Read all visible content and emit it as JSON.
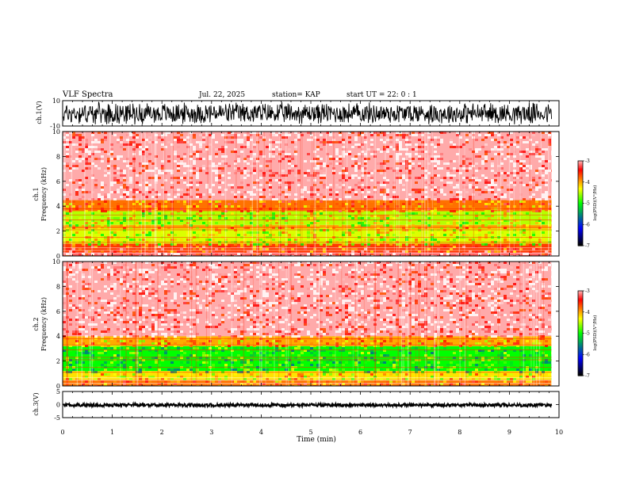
{
  "header": {
    "title": "VLF Spectra",
    "date": "Jul. 22, 2025",
    "station": "station= KAP",
    "start_ut": "start UT =  22: 0  : 1"
  },
  "colors": {
    "spectrogram_scale": [
      "#ffffff",
      "#ff0000",
      "#ffff00",
      "#00ff00",
      "#0000ff",
      "#000000"
    ],
    "waveform": "#000000",
    "axes": "#000000"
  },
  "chart_data": [
    {
      "type": "line",
      "panel": "ch1-waveform",
      "ylabel": "ch.1(V)",
      "ylim": [
        -10,
        10
      ],
      "yticks": [
        "10",
        "-10"
      ],
      "description_values": {
        "approx_amplitude_range": [
          -9,
          9
        ]
      }
    },
    {
      "type": "heatmap",
      "panel": "ch1-spectrogram",
      "ylabel_line1": "ch.1",
      "ylabel_line2": "Frequency (kHz)",
      "ylim": [
        0,
        10
      ],
      "yticks": [
        "0",
        "2",
        "4",
        "6",
        "8",
        "10"
      ],
      "colorbar": {
        "label": "log(PSD)(V²/Hz)",
        "range": [
          -7,
          -3
        ],
        "ticks": [
          "-3",
          "-4",
          "-5",
          "-6",
          "-7"
        ]
      },
      "bands_khz": [
        {
          "from": 0.0,
          "to": 0.3,
          "level": -3.2
        },
        {
          "from": 0.3,
          "to": 1.0,
          "level": -3.6
        },
        {
          "from": 1.0,
          "to": 2.2,
          "level": -4.4
        },
        {
          "from": 2.2,
          "to": 2.5,
          "level": -4.0
        },
        {
          "from": 2.5,
          "to": 3.6,
          "level": -4.5
        },
        {
          "from": 3.6,
          "to": 4.5,
          "level": -3.8
        },
        {
          "from": 4.5,
          "to": 10.0,
          "level": -3.0
        }
      ]
    },
    {
      "type": "heatmap",
      "panel": "ch2-spectrogram",
      "ylabel_line1": "ch.2",
      "ylabel_line2": "Frequency (kHz)",
      "ylim": [
        0,
        10
      ],
      "yticks": [
        "0",
        "2",
        "4",
        "6",
        "8",
        "10"
      ],
      "colorbar": {
        "label": "log(PSD)(V²/Hz)",
        "range": [
          -7,
          -3
        ],
        "ticks": [
          "-3",
          "-4",
          "-5",
          "-6",
          "-7"
        ]
      },
      "bands_khz": [
        {
          "from": 0.0,
          "to": 0.5,
          "level": -3.8
        },
        {
          "from": 0.5,
          "to": 1.2,
          "level": -4.2
        },
        {
          "from": 1.2,
          "to": 3.2,
          "level": -5.0
        },
        {
          "from": 3.2,
          "to": 4.0,
          "level": -4.0
        },
        {
          "from": 4.0,
          "to": 10.0,
          "level": -3.0
        }
      ]
    },
    {
      "type": "line",
      "panel": "ch3-waveform",
      "ylabel": "ch.3(V)",
      "ylim": [
        -5,
        5
      ],
      "yticks": [
        "5",
        "0",
        "-5"
      ],
      "description_values": {
        "approx_amplitude_range": [
          -0.5,
          0.5
        ],
        "offset": -0.2
      }
    }
  ],
  "xaxis": {
    "label": "Time (min)",
    "range": [
      0,
      10
    ],
    "data_end": 9.85,
    "ticks": [
      "0",
      "1",
      "2",
      "3",
      "4",
      "5",
      "6",
      "7",
      "8",
      "9",
      "10"
    ]
  }
}
